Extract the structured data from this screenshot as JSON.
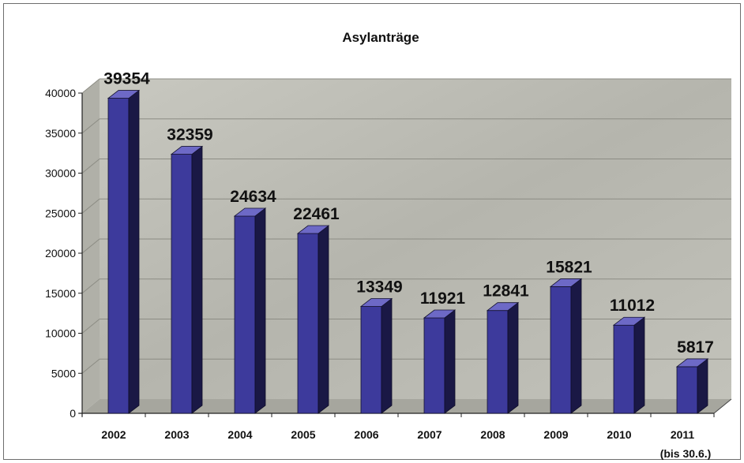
{
  "chart_data": {
    "type": "bar",
    "title": "Asylanträge",
    "categories": [
      "2002",
      "2003",
      "2004",
      "2005",
      "2006",
      "2007",
      "2008",
      "2009",
      "2010",
      "2011"
    ],
    "category_sublabels": [
      "",
      "",
      "",
      "",
      "",
      "",
      "",
      "",
      "",
      "(bis 30.6.)"
    ],
    "values": [
      39354,
      32359,
      24634,
      22461,
      13349,
      11921,
      12841,
      15821,
      11012,
      5817
    ],
    "value_labels": [
      "39354",
      "32359",
      "24634",
      "22461",
      "13349",
      "11921",
      "12841",
      "15821",
      "11012",
      "5817"
    ],
    "yticks": [
      "0",
      "5000",
      "10000",
      "15000",
      "20000",
      "25000",
      "30000",
      "35000",
      "40000"
    ],
    "ylim": [
      0,
      40000
    ],
    "xlabel": "",
    "ylabel": "",
    "style": "3d-column",
    "grid": true,
    "legend": "none",
    "colors": {
      "bar_front": "#3d3a9c",
      "bar_side": "#1a1845",
      "bar_top": "#6d69c6",
      "wall": "#bcbcb4",
      "floor": "#a6a69e",
      "gridline": "#8c8c84"
    }
  }
}
